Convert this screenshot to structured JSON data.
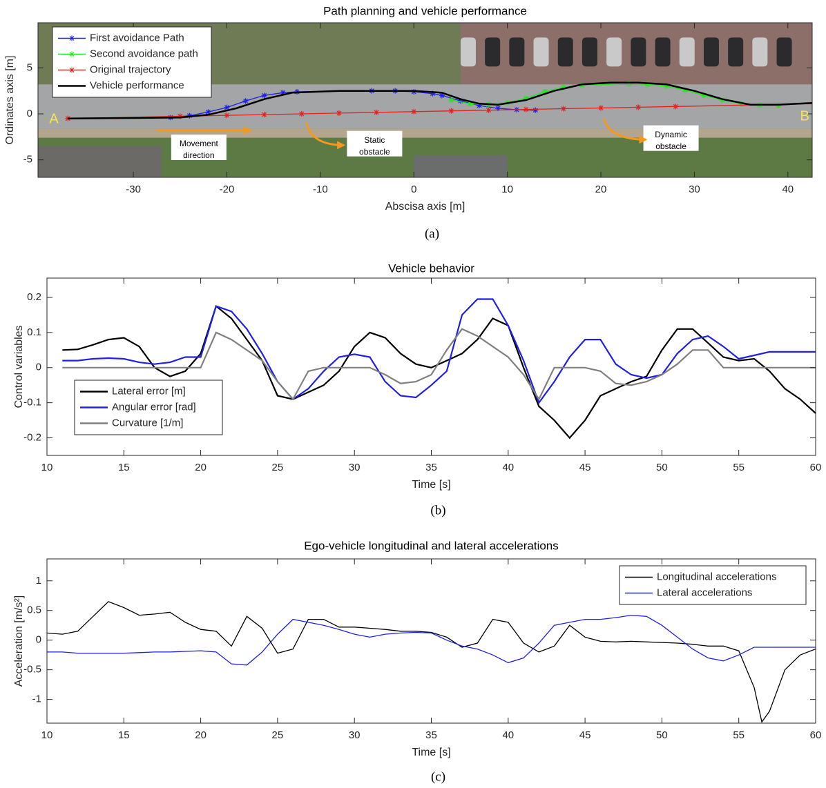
{
  "chart_data": [
    {
      "type": "line",
      "title": "Path planning and vehicle performance",
      "xlabel": "Abscisa axis [m]",
      "ylabel": "Ordinates axis [m]",
      "caption": "(a)",
      "xlim": [
        -40.2,
        42.6
      ],
      "ylim": [
        -6.9,
        9.9
      ],
      "xticks": [
        -30,
        -20,
        -10,
        0,
        10,
        20,
        30,
        40
      ],
      "yticks": [
        -5,
        0,
        5
      ],
      "legend": "upper left",
      "annotations": [
        [
          "A"
        ],
        [
          "B"
        ],
        [
          "Movement",
          "direction"
        ],
        [
          "Static",
          "obstacle"
        ],
        [
          "Dynamic",
          "obstacle"
        ]
      ],
      "series": [
        {
          "name": "First avoidance Path",
          "color": "#1f1fe6",
          "marker": "*",
          "x": [
            -26,
            -24,
            -22,
            -20,
            -18,
            -16,
            -14,
            -12.5,
            -4.5,
            -2,
            0,
            2,
            3,
            5,
            7,
            9,
            11,
            13
          ],
          "y": [
            -0.4,
            -0.2,
            0.2,
            0.7,
            1.4,
            2.0,
            2.3,
            2.4,
            2.5,
            2.5,
            2.4,
            2.2,
            2.0,
            1.4,
            0.9,
            0.6,
            0.45,
            0.4
          ]
        },
        {
          "name": "Second avoidance path",
          "color": "#22e61f",
          "marker": "*",
          "x": [
            4,
            6,
            8,
            10,
            12,
            14,
            16,
            18,
            23,
            25,
            27,
            29,
            31,
            33,
            35,
            37,
            39
          ],
          "y": [
            1.5,
            1.1,
            1.0,
            1.2,
            1.7,
            2.4,
            2.9,
            3.1,
            3.3,
            3.2,
            3.0,
            2.6,
            2.0,
            1.5,
            1.1,
            0.95,
            0.9
          ]
        },
        {
          "name": "Original trajectory",
          "color": "#e61f1f",
          "marker": "*",
          "x": [
            -37,
            -25,
            -20,
            -16,
            -12,
            -8,
            -4,
            0,
            4,
            8,
            12,
            16,
            20,
            24,
            28,
            43
          ],
          "y": [
            -0.5,
            -0.26,
            -0.16,
            -0.08,
            0,
            0.08,
            0.16,
            0.24,
            0.32,
            0.4,
            0.48,
            0.56,
            0.64,
            0.72,
            0.8,
            1.1
          ]
        },
        {
          "name": "Vehicle performance",
          "color": "#000000",
          "x": [
            -37,
            -30,
            -25,
            -22,
            -19,
            -16,
            -13,
            -8,
            -4,
            0,
            3,
            5,
            7,
            9,
            12,
            15,
            18,
            21,
            24,
            27,
            30,
            33,
            36,
            39,
            43
          ],
          "y": [
            -0.5,
            -0.45,
            -0.4,
            -0.1,
            0.6,
            1.6,
            2.3,
            2.5,
            2.5,
            2.5,
            2.3,
            1.6,
            1.1,
            1.0,
            1.5,
            2.5,
            3.2,
            3.4,
            3.4,
            3.2,
            2.5,
            1.6,
            1.0,
            1.0,
            1.2
          ]
        }
      ]
    },
    {
      "type": "line",
      "title": "Vehicle behavior",
      "xlabel": "Time [s]",
      "ylabel": "Control variables",
      "caption": "(b)",
      "xlim": [
        10,
        60
      ],
      "ylim": [
        -0.25,
        0.255
      ],
      "xticks": [
        10,
        15,
        20,
        25,
        30,
        35,
        40,
        45,
        50,
        55,
        60
      ],
      "yticks": [
        -0.2,
        -0.1,
        0,
        0.1,
        0.2
      ],
      "legend": "lower left",
      "x": [
        11,
        12,
        13,
        14,
        15,
        16,
        17,
        18,
        19,
        20,
        21,
        22,
        23,
        24,
        25,
        26,
        27,
        28,
        29,
        30,
        31,
        32,
        33,
        34,
        35,
        36,
        37,
        38,
        39,
        40,
        41,
        42,
        43,
        44,
        45,
        46,
        47,
        48,
        49,
        50,
        51,
        52,
        53,
        54,
        55,
        56,
        57,
        58,
        59,
        60
      ],
      "series": [
        {
          "name": "Lateral error [m]",
          "color": "#000000",
          "values": [
            0.05,
            0.052,
            0.065,
            0.08,
            0.085,
            0.06,
            0.0,
            -0.025,
            -0.01,
            0.04,
            0.175,
            0.14,
            0.08,
            0.02,
            -0.08,
            -0.09,
            -0.07,
            -0.05,
            -0.01,
            0.06,
            0.1,
            0.085,
            0.04,
            0.01,
            0.0,
            0.02,
            0.04,
            0.08,
            0.14,
            0.12,
            0.0,
            -0.11,
            -0.15,
            -0.2,
            -0.15,
            -0.08,
            -0.06,
            -0.04,
            -0.025,
            0.05,
            0.11,
            0.11,
            0.07,
            0.03,
            0.02,
            0.025,
            -0.01,
            -0.06,
            -0.09,
            -0.13
          ]
        },
        {
          "name": "Angular error [rad]",
          "color": "#1f1fe6",
          "values": [
            0.02,
            0.02,
            0.025,
            0.027,
            0.025,
            0.015,
            0.01,
            0.015,
            0.03,
            0.03,
            0.175,
            0.16,
            0.11,
            0.04,
            -0.04,
            -0.09,
            -0.06,
            -0.01,
            0.03,
            0.038,
            0.03,
            -0.04,
            -0.08,
            -0.085,
            -0.05,
            -0.01,
            0.15,
            0.195,
            0.195,
            0.12,
            0.02,
            -0.1,
            -0.04,
            0.03,
            0.08,
            0.08,
            0.01,
            -0.02,
            -0.03,
            -0.02,
            0.04,
            0.08,
            0.09,
            0.06,
            0.025,
            0.035,
            0.045,
            0.045,
            0.045,
            0.045
          ]
        },
        {
          "name": "Curvature [1/m]",
          "color": "#808080",
          "values": [
            0,
            0,
            0,
            0,
            0,
            0,
            0,
            0,
            0,
            0,
            0.1,
            0.08,
            0.05,
            0.02,
            -0.04,
            -0.09,
            -0.01,
            0,
            0,
            0,
            0,
            -0.02,
            -0.045,
            -0.04,
            -0.02,
            0.05,
            0.11,
            0.09,
            0.06,
            0.03,
            -0.02,
            -0.09,
            0,
            0,
            0,
            -0.01,
            -0.045,
            -0.05,
            -0.04,
            -0.02,
            0.01,
            0.05,
            0.05,
            0,
            0,
            0,
            0,
            0,
            0,
            0
          ]
        }
      ]
    },
    {
      "type": "line",
      "title": "Ego-vehicle longitudinal and lateral accelerations",
      "xlabel": "Time [s]",
      "ylabel": "Acceleration [m/s²]",
      "caption": "(c)",
      "xlim": [
        10,
        60
      ],
      "ylim": [
        -1.4,
        1.37
      ],
      "xticks": [
        10,
        15,
        20,
        25,
        30,
        35,
        40,
        45,
        50,
        55,
        60
      ],
      "yticks": [
        -1,
        -0.5,
        0,
        0.5,
        1
      ],
      "legend": "upper right",
      "x": [
        10,
        11,
        12,
        13,
        14,
        15,
        16,
        17,
        18,
        19,
        20,
        21,
        22,
        23,
        24,
        25,
        26,
        27,
        28,
        29,
        30,
        31,
        32,
        33,
        34,
        35,
        36,
        37,
        38,
        39,
        40,
        41,
        42,
        43,
        44,
        45,
        46,
        47,
        48,
        49,
        50,
        51,
        52,
        53,
        54,
        55,
        56,
        56.5,
        57,
        58,
        59,
        60
      ],
      "series": [
        {
          "name": "Longitudinal accelerations",
          "color": "#000000",
          "values": [
            0.12,
            0.1,
            0.15,
            0.4,
            0.65,
            0.55,
            0.42,
            0.44,
            0.47,
            0.3,
            0.18,
            0.15,
            -0.1,
            0.4,
            0.2,
            -0.22,
            -0.15,
            0.35,
            0.35,
            0.22,
            0.22,
            0.2,
            0.18,
            0.15,
            0.15,
            0.13,
            0.05,
            -0.12,
            -0.05,
            0.35,
            0.3,
            -0.05,
            -0.2,
            -0.1,
            0.25,
            0.05,
            -0.02,
            -0.03,
            -0.02,
            -0.03,
            -0.04,
            -0.05,
            -0.07,
            -0.1,
            -0.1,
            -0.18,
            -0.8,
            -1.38,
            -1.2,
            -0.5,
            -0.25,
            -0.15
          ]
        },
        {
          "name": "Lateral accelerations",
          "color": "#1f1fe6",
          "values": [
            -0.2,
            -0.2,
            -0.22,
            -0.22,
            -0.22,
            -0.22,
            -0.21,
            -0.2,
            -0.2,
            -0.19,
            -0.18,
            -0.2,
            -0.4,
            -0.42,
            -0.2,
            0.1,
            0.35,
            0.3,
            0.25,
            0.18,
            0.1,
            0.05,
            0.1,
            0.12,
            0.13,
            0.12,
            0.0,
            -0.1,
            -0.15,
            -0.25,
            -0.38,
            -0.3,
            -0.05,
            0.25,
            0.3,
            0.35,
            0.35,
            0.38,
            0.42,
            0.4,
            0.25,
            0.05,
            -0.15,
            -0.3,
            -0.35,
            -0.25,
            -0.12,
            -0.12,
            -0.12,
            -0.12,
            -0.12,
            -0.12
          ]
        }
      ]
    }
  ]
}
